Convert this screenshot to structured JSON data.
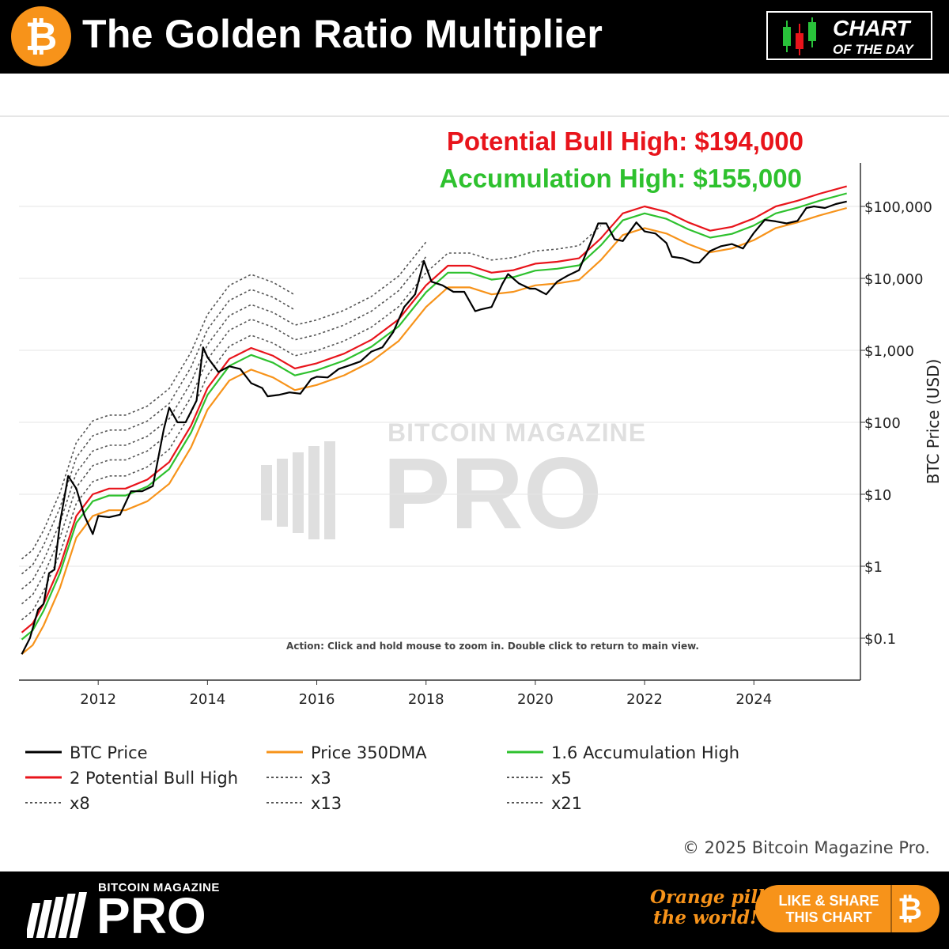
{
  "header": {
    "title": "The Golden Ratio Multiplier",
    "logo_icon": "bitcoin-icon",
    "badge_line1": "CHART",
    "badge_line2": "OF THE DAY",
    "badge_icon": "candlestick-icon"
  },
  "chart_data": {
    "type": "line",
    "annotations": [
      {
        "text": "Potential Bull High: $194,000",
        "color": "#e8141b"
      },
      {
        "text": "Accumulation High: $155,000",
        "color": "#2ec12e"
      }
    ],
    "ylabel": "BTC Price (USD)",
    "yscale": "log",
    "ylim": [
      0.05,
      300000
    ],
    "xlim": [
      2010.6,
      2025.9
    ],
    "y_ticks": [
      {
        "value": 0.1,
        "label": "$0.1"
      },
      {
        "value": 1,
        "label": "$1"
      },
      {
        "value": 10,
        "label": "$10"
      },
      {
        "value": 100,
        "label": "$100"
      },
      {
        "value": 1000,
        "label": "$1,000"
      },
      {
        "value": 10000,
        "label": "$10,000"
      },
      {
        "value": 100000,
        "label": "$100,000"
      }
    ],
    "x_ticks": [
      "2012",
      "2014",
      "2016",
      "2018",
      "2020",
      "2022",
      "2024"
    ],
    "grid": "horizontal",
    "instruction_text": "Action: Click and hold mouse to zoom in.  Double click to return to main view.",
    "watermark": "BITCOIN MAGAZINE PRO",
    "series": [
      {
        "name": "BTC Price",
        "color": "#000000",
        "style": "solid",
        "x": [
          2010.6,
          2010.75,
          2010.9,
          2011.0,
          2011.1,
          2011.2,
          2011.3,
          2011.45,
          2011.6,
          2011.75,
          2011.9,
          2012.0,
          2012.2,
          2012.4,
          2012.6,
          2012.8,
          2013.0,
          2013.2,
          2013.3,
          2013.45,
          2013.6,
          2013.8,
          2013.92,
          2014.0,
          2014.2,
          2014.4,
          2014.6,
          2014.8,
          2015.0,
          2015.1,
          2015.3,
          2015.5,
          2015.7,
          2015.9,
          2016.0,
          2016.2,
          2016.4,
          2016.6,
          2016.8,
          2017.0,
          2017.2,
          2017.4,
          2017.6,
          2017.8,
          2017.96,
          2018.1,
          2018.3,
          2018.5,
          2018.7,
          2018.9,
          2019.0,
          2019.2,
          2019.4,
          2019.5,
          2019.7,
          2019.9,
          2020.0,
          2020.2,
          2020.4,
          2020.6,
          2020.8,
          2021.0,
          2021.15,
          2021.3,
          2021.45,
          2021.6,
          2021.85,
          2022.0,
          2022.2,
          2022.4,
          2022.5,
          2022.7,
          2022.9,
          2023.0,
          2023.2,
          2023.4,
          2023.6,
          2023.8,
          2024.0,
          2024.2,
          2024.4,
          2024.6,
          2024.8,
          2024.96,
          2025.1,
          2025.3,
          2025.5,
          2025.7
        ],
        "values": [
          0.06,
          0.1,
          0.25,
          0.3,
          0.8,
          0.9,
          4,
          18,
          12,
          5,
          2.8,
          5,
          4.8,
          5.2,
          11,
          11,
          13,
          80,
          160,
          100,
          100,
          200,
          1100,
          800,
          500,
          600,
          550,
          350,
          300,
          230,
          240,
          260,
          250,
          400,
          430,
          420,
          550,
          620,
          700,
          960,
          1100,
          1800,
          4000,
          6000,
          17500,
          9000,
          8000,
          6500,
          6500,
          3500,
          3700,
          4000,
          8500,
          11500,
          8500,
          7200,
          7200,
          6000,
          9000,
          11000,
          13000,
          30000,
          58000,
          58000,
          35000,
          33000,
          60000,
          45000,
          42000,
          31000,
          20000,
          19000,
          16500,
          16600,
          24000,
          28000,
          30000,
          26000,
          43000,
          65000,
          62000,
          58000,
          63000,
          95000,
          100000,
          95000,
          108000,
          117000
        ]
      },
      {
        "name": "Price 350DMA",
        "color": "#f7931a",
        "style": "solid",
        "x": [
          2010.6,
          2010.8,
          2011.0,
          2011.3,
          2011.6,
          2011.9,
          2012.2,
          2012.5,
          2012.9,
          2013.3,
          2013.7,
          2014.0,
          2014.4,
          2014.8,
          2015.2,
          2015.6,
          2016.0,
          2016.5,
          2017.0,
          2017.5,
          2018.0,
          2018.4,
          2018.8,
          2019.2,
          2019.6,
          2020.0,
          2020.4,
          2020.8,
          2021.2,
          2021.6,
          2022.0,
          2022.4,
          2022.8,
          2023.2,
          2023.6,
          2024.0,
          2024.4,
          2024.8,
          2025.2,
          2025.7
        ],
        "values": [
          0.06,
          0.08,
          0.15,
          0.5,
          2.5,
          5,
          6,
          6,
          8,
          14,
          45,
          150,
          380,
          540,
          420,
          280,
          330,
          450,
          700,
          1350,
          4000,
          7500,
          7500,
          6000,
          6500,
          8000,
          8500,
          9500,
          18000,
          40000,
          50000,
          42000,
          30000,
          23000,
          26000,
          34000,
          50000,
          60000,
          75000,
          95000
        ]
      },
      {
        "name": "1.6 Accumulation High",
        "color": "#2ec12e",
        "style": "solid",
        "mult": 1.6,
        "current_value": 155000
      },
      {
        "name": "2 Potential Bull High",
        "color": "#e8141b",
        "style": "solid",
        "mult": 2,
        "current_value": 194000
      },
      {
        "name": "x3",
        "color": "#555555",
        "style": "dotted",
        "mult": 3
      },
      {
        "name": "x5",
        "color": "#555555",
        "style": "dotted",
        "mult": 5
      },
      {
        "name": "x8",
        "color": "#555555",
        "style": "dotted",
        "mult": 8
      },
      {
        "name": "x13",
        "color": "#555555",
        "style": "dotted",
        "mult": 13
      },
      {
        "name": "x21",
        "color": "#555555",
        "style": "dotted",
        "mult": 21
      }
    ]
  },
  "legend": [
    {
      "label": "BTC Price",
      "color": "#000000",
      "style": "solid"
    },
    {
      "label": "Price 350DMA",
      "color": "#f7931a",
      "style": "solid"
    },
    {
      "label": "1.6 Accumulation High",
      "color": "#2ec12e",
      "style": "solid"
    },
    {
      "label": "2 Potential Bull High",
      "color": "#e8141b",
      "style": "solid"
    },
    {
      "label": "x3",
      "color": "#555555",
      "style": "dotted"
    },
    {
      "label": "x5",
      "color": "#555555",
      "style": "dotted"
    },
    {
      "label": "x8",
      "color": "#555555",
      "style": "dotted"
    },
    {
      "label": "x13",
      "color": "#555555",
      "style": "dotted"
    },
    {
      "label": "x21",
      "color": "#555555",
      "style": "dotted"
    }
  ],
  "copyright": "© 2025 Bitcoin Magazine Pro.",
  "footer": {
    "brand_small": "BITCOIN MAGAZINE",
    "brand_big": "PRO",
    "tagline_line1": "Orange pill",
    "tagline_line2": "the world!",
    "cta_line1": "LIKE & SHARE",
    "cta_line2": "THIS CHART",
    "cta_icon": "bitcoin-icon"
  }
}
